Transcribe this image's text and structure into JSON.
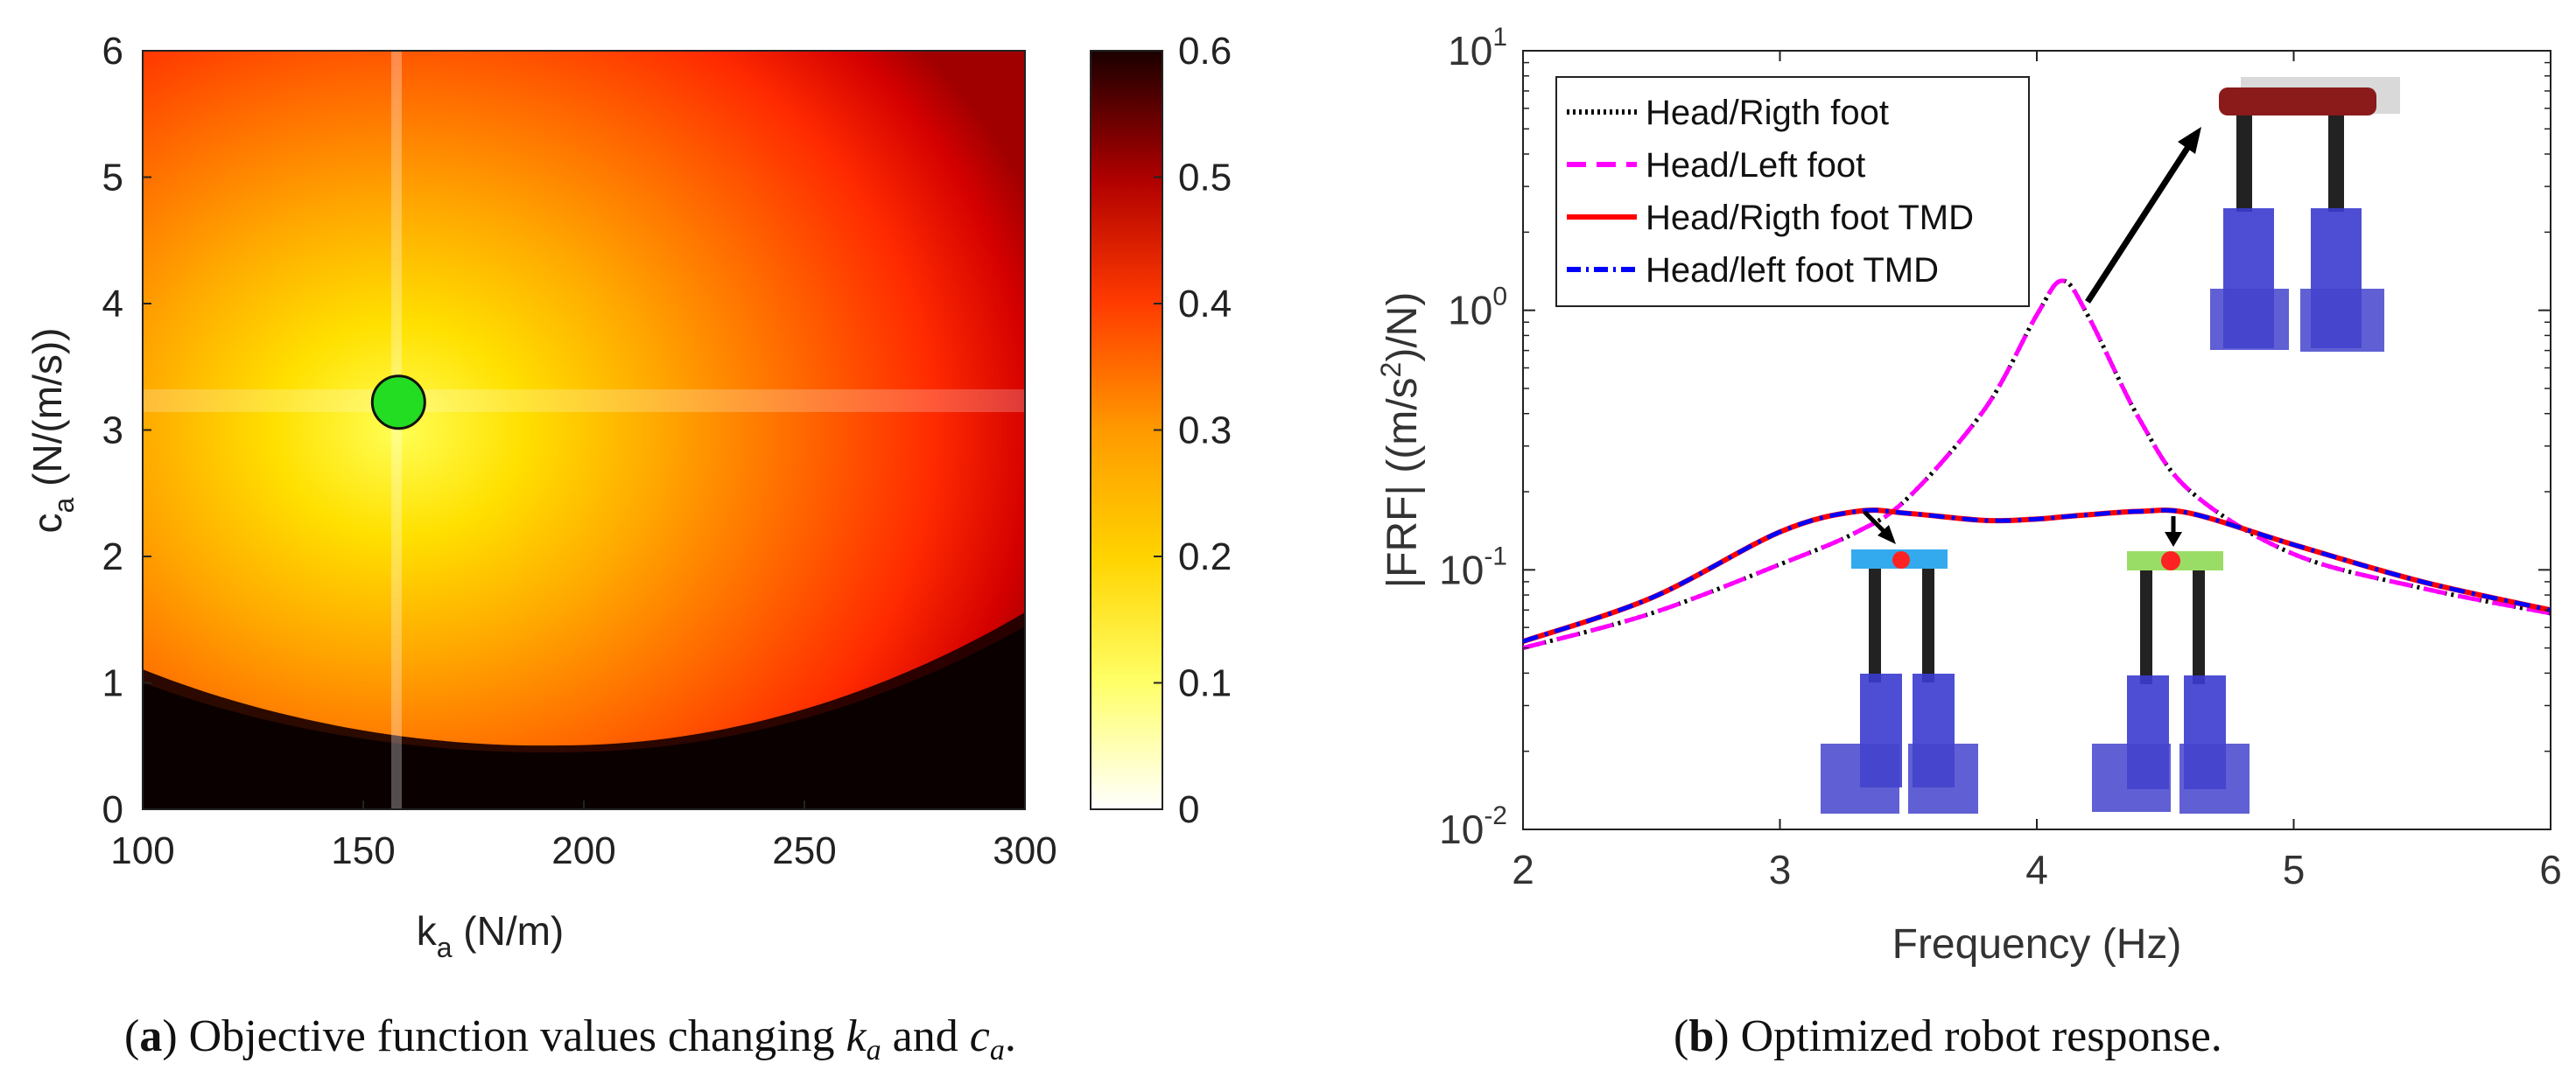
{
  "panel_a": {
    "xlabel_var": "k",
    "xlabel_sub": "a",
    "xlabel_unit": " (N/m)",
    "ylabel_var": "c",
    "ylabel_sub": "a",
    "ylabel_unit": " (N/(m/s))",
    "colorbar_ticks": [
      "0",
      "0.1",
      "0.2",
      "0.3",
      "0.4",
      "0.5",
      "0.6"
    ],
    "colormap": [
      "#ffffff",
      "#ffff66",
      "#ffd400",
      "#ff9a00",
      "#ff3a00",
      "#b00000",
      "#1a0000"
    ]
  },
  "panel_b": {
    "xlabel": "Frequency (Hz)",
    "ylabel_pre": "|FRF| ((m/s",
    "ylabel_sup": "2",
    "ylabel_post": ")/N)",
    "yticks_base": "10",
    "yticks_exp": [
      "-2",
      "-1",
      "0",
      "1"
    ],
    "legend": [
      {
        "label": "Head/Rigth foot",
        "color": "#000000",
        "dash": "dotted"
      },
      {
        "label": "Head/Left foot",
        "color": "#ff00ff",
        "dash": "dashed"
      },
      {
        "label": "Head/Rigth foot TMD",
        "color": "#ff0000",
        "dash": "solid"
      },
      {
        "label": "Head/left foot TMD",
        "color": "#0000ff",
        "dash": "dashdot"
      }
    ]
  },
  "caption_a": {
    "tag": "a",
    "text": "Objective function values changing ",
    "v1": "k",
    "s1": "a",
    "and": " and ",
    "v2": "c",
    "s2": "a",
    "end": "."
  },
  "caption_b": {
    "tag": "b",
    "text": "Optimized robot response."
  },
  "chart_data": [
    {
      "type": "heatmap",
      "xlabel": "k_a (N/m)",
      "ylabel": "c_a (N/(m/s))",
      "x": [
        100,
        150,
        200,
        250,
        300
      ],
      "y": [
        0,
        1,
        2,
        3,
        4,
        5,
        6
      ],
      "xlim": [
        100,
        300
      ],
      "ylim": [
        0,
        6
      ],
      "colorbar": {
        "min": 0,
        "max": 0.6,
        "ticks": [
          0,
          0.1,
          0.2,
          0.3,
          0.4,
          0.5,
          0.6
        ]
      },
      "z_rows_y": [
        0.5,
        1.5,
        2.5,
        3.5,
        4.5,
        5.5
      ],
      "z": [
        [
          0.6,
          0.6,
          0.6,
          0.6,
          0.6
        ],
        [
          0.45,
          0.25,
          0.3,
          0.45,
          0.6
        ],
        [
          0.3,
          0.05,
          0.15,
          0.35,
          0.5
        ],
        [
          0.25,
          0.05,
          0.15,
          0.3,
          0.45
        ],
        [
          0.3,
          0.15,
          0.2,
          0.3,
          0.42
        ],
        [
          0.3,
          0.2,
          0.25,
          0.33,
          0.42
        ]
      ],
      "optimum": {
        "x": 158,
        "y": 3.22
      },
      "grid": false
    },
    {
      "type": "line",
      "xlabel": "Frequency (Hz)",
      "ylabel": "|FRF| ((m/s^2)/N)",
      "xlim": [
        2,
        6
      ],
      "ylim": [
        0.01,
        10
      ],
      "yscale": "log",
      "x": [
        2.0,
        2.5,
        3.0,
        3.3,
        3.5,
        3.8,
        4.0,
        4.1,
        4.2,
        4.4,
        4.6,
        5.0,
        5.5,
        6.0
      ],
      "series": [
        {
          "name": "Head/Rigth foot",
          "values": [
            0.05,
            0.068,
            0.105,
            0.14,
            0.19,
            0.42,
            0.96,
            1.3,
            0.95,
            0.38,
            0.2,
            0.115,
            0.085,
            0.068
          ]
        },
        {
          "name": "Head/Left foot",
          "values": [
            0.05,
            0.068,
            0.105,
            0.14,
            0.19,
            0.42,
            0.96,
            1.3,
            0.95,
            0.38,
            0.2,
            0.115,
            0.085,
            0.068
          ]
        },
        {
          "name": "Head/Rigth foot TMD",
          "values": [
            0.053,
            0.078,
            0.14,
            0.168,
            0.165,
            0.155,
            0.157,
            0.16,
            0.163,
            0.168,
            0.165,
            0.125,
            0.09,
            0.07
          ]
        },
        {
          "name": "Head/left foot TMD",
          "values": [
            0.053,
            0.078,
            0.14,
            0.168,
            0.165,
            0.155,
            0.157,
            0.16,
            0.163,
            0.168,
            0.165,
            0.125,
            0.09,
            0.07
          ]
        }
      ],
      "legend_position": "top-left",
      "grid": false
    }
  ]
}
